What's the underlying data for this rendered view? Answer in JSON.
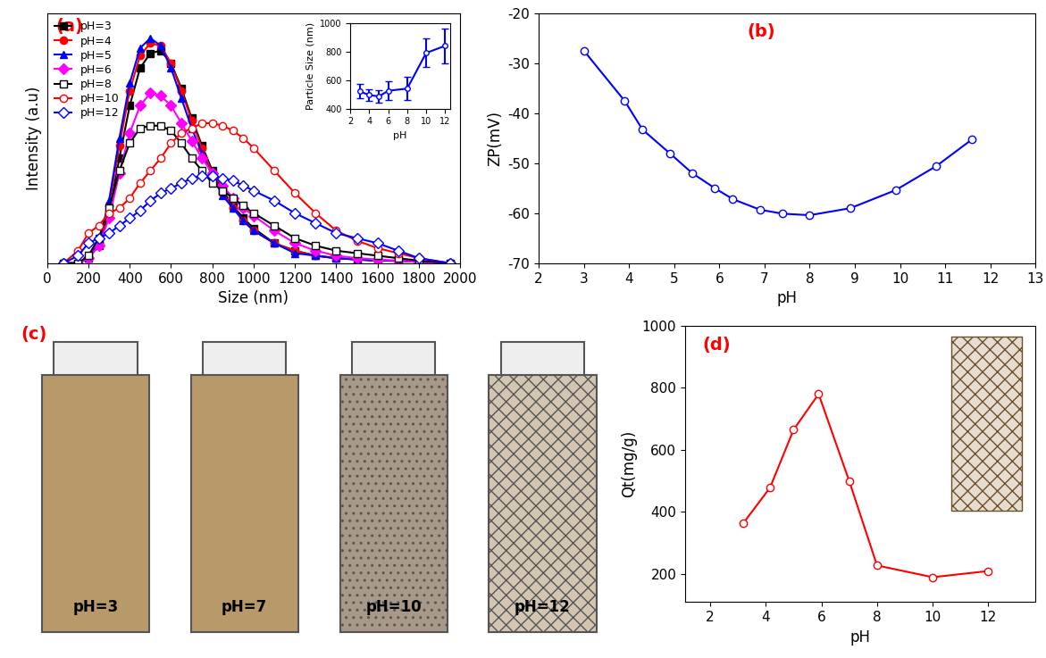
{
  "chart_data": [
    {
      "type": "line",
      "title": "(a)",
      "x_label": "Size (nm)",
      "y_label": "Intensity (a.u)",
      "xlim": [
        0,
        2000
      ],
      "xticks": [
        0,
        200,
        400,
        600,
        800,
        1000,
        1200,
        1400,
        1600,
        1800,
        2000
      ],
      "ylim": [
        0,
        100
      ],
      "tick_labels": "x",
      "legend": "upper left",
      "x": [
        80,
        150,
        200,
        250,
        300,
        350,
        400,
        450,
        500,
        550,
        600,
        650,
        700,
        750,
        800,
        850,
        900,
        950,
        1000,
        1100,
        1200,
        1300,
        1400,
        1500,
        1600,
        1700,
        1800,
        1950
      ],
      "series": [
        {
          "name": "pH=3",
          "color": "#000000",
          "marker": "square",
          "values": [
            0,
            0,
            2,
            7,
            20,
            42,
            63,
            78,
            84,
            85,
            80,
            70,
            58,
            47,
            37,
            29,
            23,
            18,
            14,
            8,
            5,
            3,
            2,
            1.5,
            1,
            1,
            0.5,
            0
          ]
        },
        {
          "name": "pH=4",
          "color": "#ff0000",
          "marker": "circle",
          "values": [
            0,
            0,
            2,
            8,
            23,
            47,
            69,
            83,
            88,
            87,
            80,
            69,
            57,
            46,
            36,
            28,
            22,
            17,
            13,
            8,
            5,
            3,
            2,
            1.5,
            1,
            1,
            0.5,
            0
          ]
        },
        {
          "name": "pH=5",
          "color": "#0000ff",
          "marker": "triangle",
          "values": [
            0,
            0,
            2,
            8,
            25,
            50,
            72,
            86,
            90,
            87,
            78,
            66,
            54,
            44,
            35,
            27,
            22,
            17,
            13,
            8,
            4,
            3,
            2,
            1.5,
            1,
            1,
            0.5,
            0
          ]
        },
        {
          "name": "pH=6",
          "color": "#ff00ff",
          "marker": "diamond",
          "values": [
            0,
            0,
            2,
            7,
            18,
            36,
            52,
            63,
            68,
            67,
            63,
            56,
            49,
            42,
            36,
            31,
            26,
            22,
            19,
            13,
            8,
            5,
            3,
            2,
            1.5,
            1,
            0.5,
            0
          ]
        },
        {
          "name": "pH=8",
          "color": "#000000",
          "marker": "open square",
          "values": [
            0,
            0,
            3,
            10,
            22,
            37,
            48,
            54,
            55,
            55,
            53,
            48,
            42,
            37,
            32,
            29,
            26,
            23,
            20,
            15,
            10,
            7,
            5,
            4,
            3,
            2,
            1,
            0
          ]
        },
        {
          "name": "pH=10",
          "color": "#ff0000",
          "marker": "open circle",
          "values": [
            0,
            5,
            12,
            15,
            20,
            22,
            26,
            32,
            37,
            42,
            48,
            52,
            54,
            56,
            56,
            55,
            53,
            50,
            46,
            37,
            28,
            20,
            13,
            9,
            6,
            4,
            2,
            0
          ]
        },
        {
          "name": "pH=12",
          "color": "#0000ff",
          "marker": "open diamond",
          "values": [
            0,
            3,
            8,
            10,
            12,
            15,
            18,
            21,
            25,
            28,
            30,
            32,
            34,
            35,
            35,
            34,
            33,
            31,
            29,
            25,
            20,
            16,
            12,
            10,
            8,
            5,
            2,
            0
          ]
        }
      ]
    },
    {
      "type": "line",
      "x_label": "pH",
      "y_label": "Particle Size (nm)",
      "xlim": [
        2,
        12.5
      ],
      "xticks": [
        2,
        4,
        6,
        8,
        10,
        12
      ],
      "ylim": [
        400,
        1000
      ],
      "yticks": [
        400,
        600,
        800,
        1000
      ],
      "x": [
        3,
        4,
        5,
        6,
        8,
        10,
        12
      ],
      "series": [
        {
          "color": "#0000ff",
          "marker": "open circle",
          "values": [
            520,
            495,
            485,
            525,
            540,
            790,
            840
          ],
          "errors": [
            50,
            40,
            45,
            65,
            80,
            100,
            120
          ]
        }
      ]
    },
    {
      "type": "line",
      "title": "(b)",
      "x_label": "pH",
      "y_label": "ZP(mV)",
      "xlim": [
        2,
        13
      ],
      "xticks": [
        2,
        3,
        4,
        5,
        6,
        7,
        8,
        9,
        10,
        11,
        12,
        13
      ],
      "ylim": [
        -70,
        -20
      ],
      "yticks": [
        -70,
        -60,
        -50,
        -40,
        -30,
        -20
      ],
      "x": [
        3,
        3.9,
        4.3,
        4.9,
        5.4,
        5.9,
        6.3,
        6.9,
        7.4,
        8,
        8.9,
        9.9,
        10.8,
        11.6
      ],
      "series": [
        {
          "color": "#0000ff",
          "marker": "open circle",
          "values": [
            -27.5,
            -37.5,
            -43.3,
            -48,
            -52,
            -55,
            -57.2,
            -59.3,
            -60.1,
            -60.4,
            -59,
            -55.4,
            -50.6,
            -45.2
          ]
        }
      ]
    },
    {
      "type": "line",
      "title": "(d)",
      "x_label": "pH",
      "y_label": "Qt(mg/g)",
      "xlim": [
        1.1,
        13.7
      ],
      "xticks": [
        2,
        4,
        6,
        8,
        10,
        12
      ],
      "ylim": [
        110,
        1000
      ],
      "yticks": [
        200,
        400,
        600,
        800,
        1000
      ],
      "x": [
        3.2,
        4.15,
        5,
        5.9,
        7,
        8,
        10,
        12
      ],
      "series": [
        {
          "color": "#ff0000",
          "marker": "open circle",
          "values": [
            365,
            478,
            665,
            780,
            500,
            228,
            190,
            210
          ]
        }
      ]
    }
  ],
  "photos": {
    "title": "(c)",
    "labels": [
      "pH=3",
      "pH=7",
      "pH=10",
      "pH=12"
    ]
  }
}
